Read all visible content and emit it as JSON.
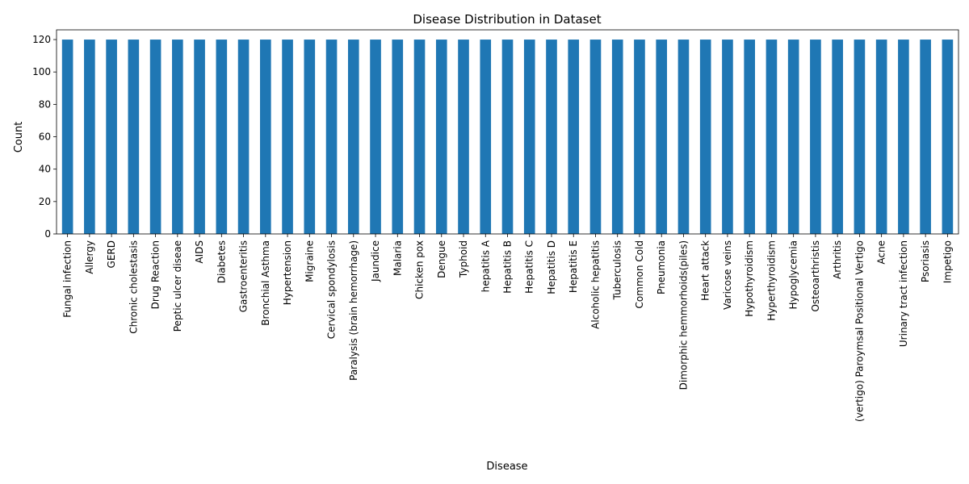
{
  "chart_data": {
    "type": "bar",
    "title": "Disease Distribution in Dataset",
    "xlabel": "Disease",
    "ylabel": "Count",
    "ylim": [
      0,
      126
    ],
    "yticks": [
      0,
      20,
      40,
      60,
      80,
      100,
      120
    ],
    "grid": false,
    "legend": "none",
    "bar_color": "#1f77b4",
    "categories": [
      "Fungal infection",
      "Allergy",
      "GERD",
      "Chronic cholestasis",
      "Drug Reaction",
      "Peptic ulcer diseae",
      "AIDS",
      "Diabetes ",
      "Gastroenteritis",
      "Bronchial Asthma",
      "Hypertension ",
      "Migraine",
      "Cervical spondylosis",
      "Paralysis (brain hemorrhage)",
      "Jaundice",
      "Malaria",
      "Chicken pox",
      "Dengue",
      "Typhoid",
      "hepatitis A",
      "Hepatitis B",
      "Hepatitis C",
      "Hepatitis D",
      "Hepatitis E",
      "Alcoholic hepatitis",
      "Tuberculosis",
      "Common Cold",
      "Pneumonia",
      "Dimorphic hemmorhoids(piles)",
      "Heart attack",
      "Varicose veins",
      "Hypothyroidism",
      "Hyperthyroidism",
      "Hypoglycemia",
      "Osteoarthristis",
      "Arthritis",
      "(vertigo) Paroymsal  Positional Vertigo",
      "Acne",
      "Urinary tract infection",
      "Psoriasis",
      "Impetigo"
    ],
    "values": [
      120,
      120,
      120,
      120,
      120,
      120,
      120,
      120,
      120,
      120,
      120,
      120,
      120,
      120,
      120,
      120,
      120,
      120,
      120,
      120,
      120,
      120,
      120,
      120,
      120,
      120,
      120,
      120,
      120,
      120,
      120,
      120,
      120,
      120,
      120,
      120,
      120,
      120,
      120,
      120,
      120
    ]
  }
}
